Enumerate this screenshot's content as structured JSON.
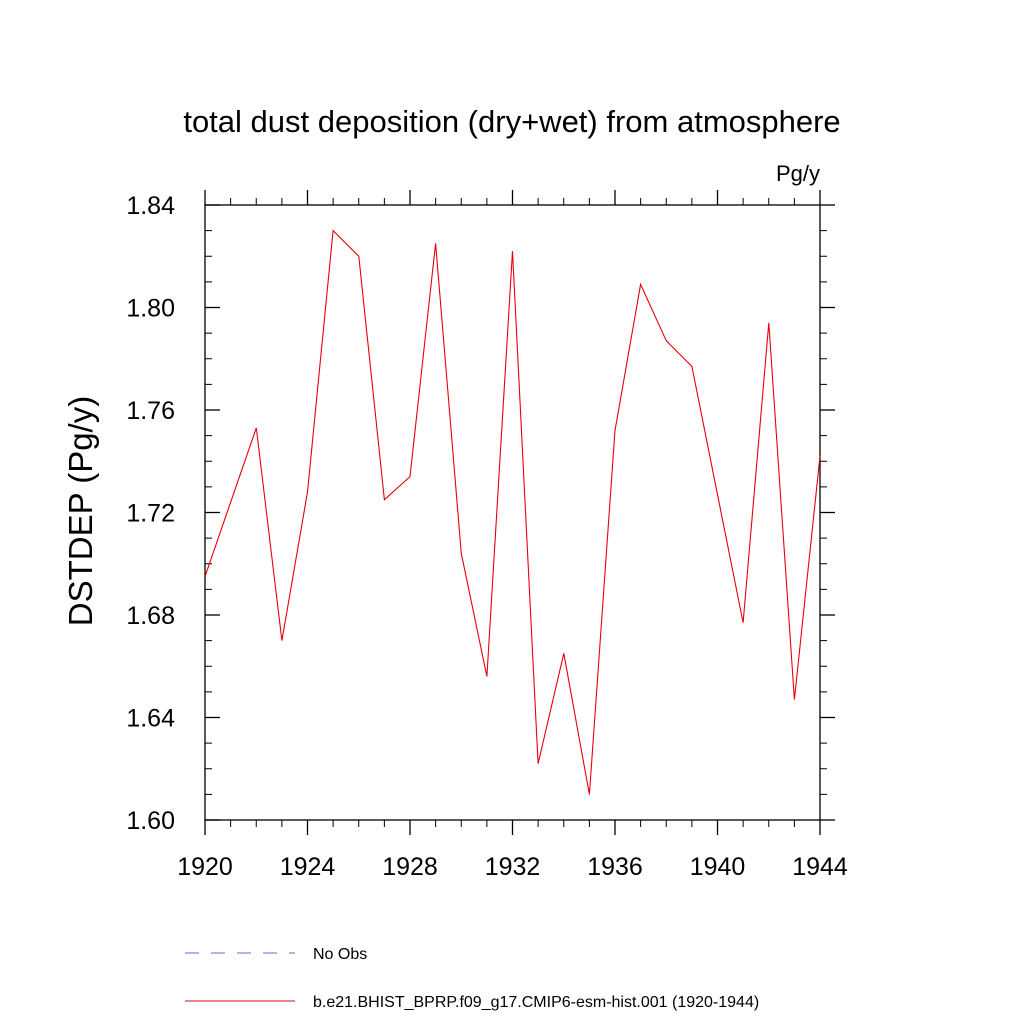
{
  "chart_data": {
    "type": "line",
    "title": "total dust deposition (dry+wet) from atmosphere",
    "units_label": "Pg/y",
    "ylabel": "DSTDEP  (Pg/y)",
    "xlabel": "",
    "xlim": [
      1920,
      1944
    ],
    "ylim": [
      1.6,
      1.84
    ],
    "x_ticks": [
      1920,
      1924,
      1928,
      1932,
      1936,
      1940,
      1944
    ],
    "x_tick_labels": [
      "1920",
      "1924",
      "1928",
      "1932",
      "1936",
      "1940",
      "1944"
    ],
    "y_ticks": [
      1.6,
      1.64,
      1.68,
      1.72,
      1.76,
      1.8,
      1.84
    ],
    "y_tick_labels": [
      "1.60",
      "1.64",
      "1.68",
      "1.72",
      "1.76",
      "1.80",
      "1.84"
    ],
    "grid": false,
    "legend_position": "bottom",
    "series": [
      {
        "name": "No Obs",
        "color": "#6a6acd",
        "style": "dashed",
        "x": [],
        "values": []
      },
      {
        "name": "b.e21.BHIST_BPRP.f09_g17.CMIP6-esm-hist.001 (1920-1944)",
        "color": "#e8000b",
        "style": "solid",
        "x": [
          1920,
          1921,
          1922,
          1923,
          1924,
          1925,
          1926,
          1927,
          1928,
          1929,
          1930,
          1931,
          1932,
          1933,
          1934,
          1935,
          1936,
          1937,
          1938,
          1939,
          1940,
          1941,
          1942,
          1943,
          1944
        ],
        "values": [
          1.695,
          1.724,
          1.753,
          1.67,
          1.728,
          1.83,
          1.82,
          1.725,
          1.734,
          1.825,
          1.704,
          1.656,
          1.822,
          1.622,
          1.665,
          1.61,
          1.752,
          1.809,
          1.787,
          1.777,
          1.727,
          1.677,
          1.794,
          1.647,
          1.742
        ]
      }
    ]
  }
}
